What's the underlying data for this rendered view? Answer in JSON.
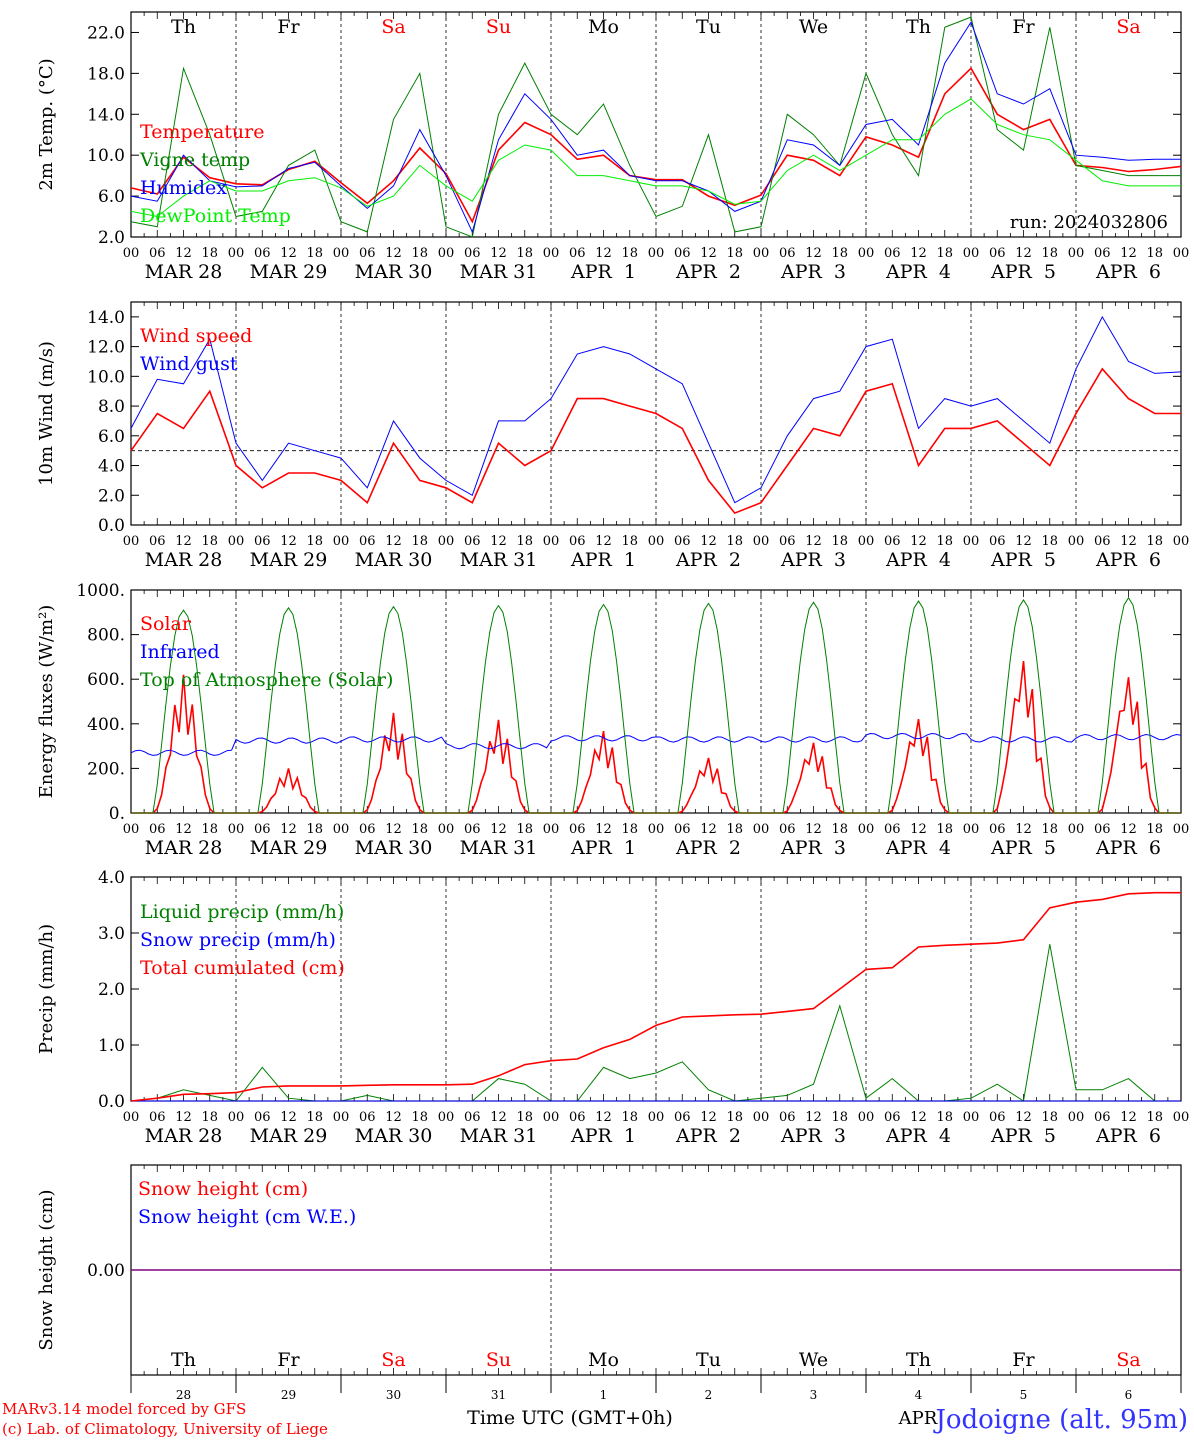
{
  "run_label": "run: 2024032806",
  "x_axis": {
    "title": "Time UTC (GMT+0h)",
    "hour_ticks": [
      "00",
      "06",
      "12",
      "18"
    ],
    "end_tick": "00",
    "dates": [
      "MAR 28",
      "MAR 29",
      "MAR 30",
      "MAR 31",
      "APR  1",
      "APR  2",
      "APR  3",
      "APR  4",
      "APR  5",
      "APR  6"
    ],
    "weekdays": [
      "Th",
      "Fr",
      "Sa",
      "Su",
      "Mo",
      "Tu",
      "We",
      "Th",
      "Fr",
      "Sa"
    ],
    "weekend_days": [
      2,
      3,
      9
    ],
    "bottom_day_numbers": [
      "28",
      "29",
      "30",
      "31",
      "1",
      "2",
      "3",
      "4",
      "5",
      "6"
    ],
    "bottom_month": "APR"
  },
  "colors": {
    "red": "#ff0000",
    "green": "#008000",
    "blue": "#0000ff",
    "lightgreen": "#00ee00",
    "purple": "#800080",
    "weekend": "#ff0000",
    "station": "#3333ff"
  },
  "footer": {
    "model_line": "MARv3.14 model forced by GFS",
    "credit_line": "(c) Lab. of Climatology, University of Liege",
    "station": "Jodoigne (alt. 95m)"
  },
  "chart_data": [
    {
      "id": "temp",
      "type": "line",
      "title": "",
      "ylabel": "2m Temp. (°C)",
      "ylim": [
        2,
        24
      ],
      "yticks": [
        2,
        6,
        10,
        14,
        18,
        22
      ],
      "ytick_labels": [
        "2.0",
        "6.0",
        "10.0",
        "14.0",
        "18.0",
        "22.0"
      ],
      "reference_line": null,
      "x_hours": [
        0,
        6,
        12,
        18,
        24,
        30,
        36,
        42,
        48,
        54,
        60,
        66,
        72,
        78,
        84,
        90,
        96,
        102,
        108,
        114,
        120,
        126,
        132,
        138,
        144,
        150,
        156,
        162,
        168,
        174,
        180,
        186,
        192,
        198,
        204,
        210,
        216,
        222,
        228,
        234,
        240
      ],
      "series": [
        {
          "name": "Temperature",
          "color": "red",
          "values": [
            6.8,
            6.2,
            9.8,
            7.8,
            7.2,
            7.1,
            8.6,
            9.4,
            7.3,
            5.3,
            7.5,
            10.7,
            8.2,
            3.5,
            10.5,
            13.2,
            12.0,
            9.6,
            10.0,
            8.0,
            7.6,
            7.6,
            6.0,
            5.1,
            6.1,
            10.0,
            9.5,
            8.0,
            11.8,
            11.0,
            9.8,
            16.0,
            18.5,
            14.0,
            12.5,
            13.5,
            9.0,
            8.8,
            8.4,
            8.6,
            8.9
          ]
        },
        {
          "name": "Vigne temp",
          "color": "green",
          "values": [
            3.5,
            3.0,
            18.5,
            12.0,
            4.0,
            4.5,
            9.0,
            10.5,
            3.5,
            2.5,
            13.5,
            18.0,
            3.0,
            1.5,
            14.0,
            19.0,
            14.0,
            12.0,
            15.0,
            9.0,
            4.0,
            5.0,
            12.0,
            2.5,
            3.0,
            14.0,
            12.0,
            9.0,
            18.0,
            12.0,
            8.0,
            22.5,
            23.5,
            12.5,
            10.5,
            22.5,
            9.0,
            8.5,
            8.0,
            8.0,
            8.0
          ]
        },
        {
          "name": "Humidex",
          "color": "blue",
          "values": [
            6.0,
            5.5,
            10.0,
            7.5,
            6.9,
            7.0,
            8.7,
            9.3,
            7.0,
            4.8,
            7.0,
            12.5,
            8.0,
            2.5,
            11.5,
            16.0,
            13.5,
            10.0,
            10.5,
            8.0,
            7.5,
            7.5,
            6.5,
            4.5,
            5.5,
            11.5,
            11.0,
            9.0,
            13.0,
            13.5,
            11.0,
            19.0,
            23.0,
            16.0,
            15.0,
            16.5,
            10.0,
            9.8,
            9.5,
            9.6,
            9.6
          ]
        },
        {
          "name": "DewPoint Temp",
          "color": "lightgreen",
          "values": [
            4.5,
            4.0,
            6.0,
            7.5,
            6.5,
            6.5,
            7.5,
            7.8,
            6.8,
            5.0,
            6.0,
            9.0,
            7.0,
            5.5,
            9.5,
            11.0,
            10.5,
            8.0,
            8.0,
            7.5,
            7.0,
            7.0,
            6.5,
            5.2,
            5.5,
            8.5,
            10.0,
            8.5,
            10.0,
            11.5,
            11.5,
            14.0,
            15.5,
            13.0,
            12.0,
            11.5,
            9.5,
            7.5,
            7.0,
            7.0,
            7.0
          ]
        }
      ]
    },
    {
      "id": "wind",
      "type": "line",
      "title": "",
      "ylabel": "10m Wind (m/s)",
      "ylim": [
        0,
        15
      ],
      "yticks": [
        0,
        2,
        4,
        6,
        8,
        10,
        12,
        14
      ],
      "ytick_labels": [
        "0.0",
        "2.0",
        "4.0",
        "6.0",
        "8.0",
        "10.0",
        "12.0",
        "14.0"
      ],
      "reference_line": 5,
      "x_hours": [
        0,
        6,
        12,
        18,
        24,
        30,
        36,
        42,
        48,
        54,
        60,
        66,
        72,
        78,
        84,
        90,
        96,
        102,
        108,
        114,
        120,
        126,
        132,
        138,
        144,
        150,
        156,
        162,
        168,
        174,
        180,
        186,
        192,
        198,
        204,
        210,
        216,
        222,
        228,
        234,
        240
      ],
      "series": [
        {
          "name": "Wind speed",
          "color": "red",
          "values": [
            5.0,
            7.5,
            6.5,
            9.0,
            4.0,
            2.5,
            3.5,
            3.5,
            3.0,
            1.5,
            5.5,
            3.0,
            2.5,
            1.5,
            5.5,
            4.0,
            5.0,
            8.5,
            8.5,
            8.0,
            7.5,
            6.5,
            3.0,
            0.8,
            1.5,
            4.0,
            6.5,
            6.0,
            9.0,
            9.5,
            4.0,
            6.5,
            6.5,
            7.0,
            5.5,
            4.0,
            7.5,
            10.5,
            8.5,
            7.5,
            7.5
          ]
        },
        {
          "name": "Wind gust",
          "color": "blue",
          "values": [
            6.5,
            9.8,
            9.5,
            12.5,
            5.5,
            3.0,
            5.5,
            5.0,
            4.5,
            2.5,
            7.0,
            4.5,
            3.0,
            2.0,
            7.0,
            7.0,
            8.5,
            11.5,
            12.0,
            11.5,
            10.5,
            9.5,
            5.5,
            1.5,
            2.5,
            6.0,
            8.5,
            9.0,
            12.0,
            12.5,
            6.5,
            8.5,
            8.0,
            8.5,
            7.0,
            5.5,
            10.5,
            14.0,
            11.0,
            10.2,
            10.3
          ]
        }
      ]
    },
    {
      "id": "energy",
      "type": "line",
      "title": "",
      "ylabel": "Energy fluxes (W/m²)",
      "ylim": [
        0,
        1000
      ],
      "yticks": [
        0,
        200,
        400,
        600,
        800,
        1000
      ],
      "ytick_labels": [
        "0.",
        "200.",
        "400.",
        "600.",
        "800.",
        "1000."
      ],
      "reference_line": null,
      "day_peaks": {
        "toa_peak": [
          910,
          920,
          925,
          930,
          935,
          940,
          945,
          950,
          955,
          965
        ],
        "solar_peak": [
          620,
          200,
          450,
          420,
          370,
          250,
          320,
          430,
          700,
          630
        ],
        "infrared_level": [
          270,
          325,
          330,
          300,
          335,
          330,
          330,
          345,
          330,
          340
        ]
      },
      "series": [
        {
          "name": "Solar",
          "color": "red",
          "values": []
        },
        {
          "name": "Infrared",
          "color": "blue",
          "values": []
        },
        {
          "name": "Top of Atmosphere (Solar)",
          "color": "green",
          "values": []
        }
      ]
    },
    {
      "id": "precip",
      "type": "line",
      "title": "",
      "ylabel": "Precip (mm/h)",
      "ylim": [
        0,
        4
      ],
      "yticks": [
        0,
        1,
        2,
        3,
        4
      ],
      "ytick_labels": [
        "0.0",
        "1.0",
        "2.0",
        "3.0",
        "4.0"
      ],
      "reference_line": null,
      "x_hours": [
        0,
        6,
        12,
        18,
        24,
        30,
        36,
        42,
        48,
        54,
        60,
        66,
        72,
        78,
        84,
        90,
        96,
        102,
        108,
        114,
        120,
        126,
        132,
        138,
        144,
        150,
        156,
        162,
        168,
        174,
        180,
        186,
        192,
        198,
        204,
        210,
        216,
        222,
        228,
        234,
        240
      ],
      "series": [
        {
          "name": "Liquid precip (mm/h)",
          "color": "green",
          "values": [
            0,
            0.05,
            0.2,
            0.1,
            0,
            0.6,
            0.05,
            0,
            0,
            0.1,
            0,
            0,
            0,
            0,
            0.4,
            0.3,
            0,
            0,
            0.6,
            0.4,
            0.5,
            0.7,
            0.2,
            0,
            0.05,
            0.1,
            0.3,
            1.7,
            0.05,
            0.4,
            0,
            0,
            0.05,
            0.3,
            0,
            2.8,
            0.2,
            0.2,
            0.4,
            0,
            0
          ]
        },
        {
          "name": "Snow precip (mm/h)",
          "color": "blue",
          "values": [
            0,
            0,
            0,
            0,
            0,
            0,
            0,
            0,
            0,
            0,
            0,
            0,
            0,
            0,
            0,
            0,
            0,
            0,
            0,
            0,
            0,
            0,
            0,
            0,
            0,
            0,
            0,
            0,
            0,
            0,
            0,
            0,
            0,
            0,
            0,
            0,
            0,
            0,
            0,
            0,
            0
          ]
        },
        {
          "name": "Total cumulated (cm)",
          "color": "red",
          "values": [
            0,
            0.05,
            0.12,
            0.13,
            0.15,
            0.25,
            0.27,
            0.27,
            0.27,
            0.28,
            0.29,
            0.29,
            0.29,
            0.3,
            0.45,
            0.65,
            0.72,
            0.75,
            0.95,
            1.1,
            1.35,
            1.5,
            1.52,
            1.54,
            1.55,
            1.6,
            1.65,
            2.0,
            2.35,
            2.38,
            2.75,
            2.78,
            2.8,
            2.82,
            2.88,
            3.45,
            3.55,
            3.6,
            3.7,
            3.72,
            3.72
          ]
        }
      ]
    },
    {
      "id": "snow",
      "type": "line",
      "title": "",
      "ylabel": "Snow height (cm)",
      "ylim": [
        -1,
        1
      ],
      "yticks": [
        0
      ],
      "ytick_labels": [
        "0.00"
      ],
      "reference_line": null,
      "x_hours": [
        0,
        240
      ],
      "series": [
        {
          "name": "Snow height (cm)",
          "color": "red",
          "values": [
            0,
            0
          ]
        },
        {
          "name": "Snow height (cm W.E.)",
          "color": "blue",
          "values": [
            0,
            0
          ]
        }
      ]
    }
  ]
}
